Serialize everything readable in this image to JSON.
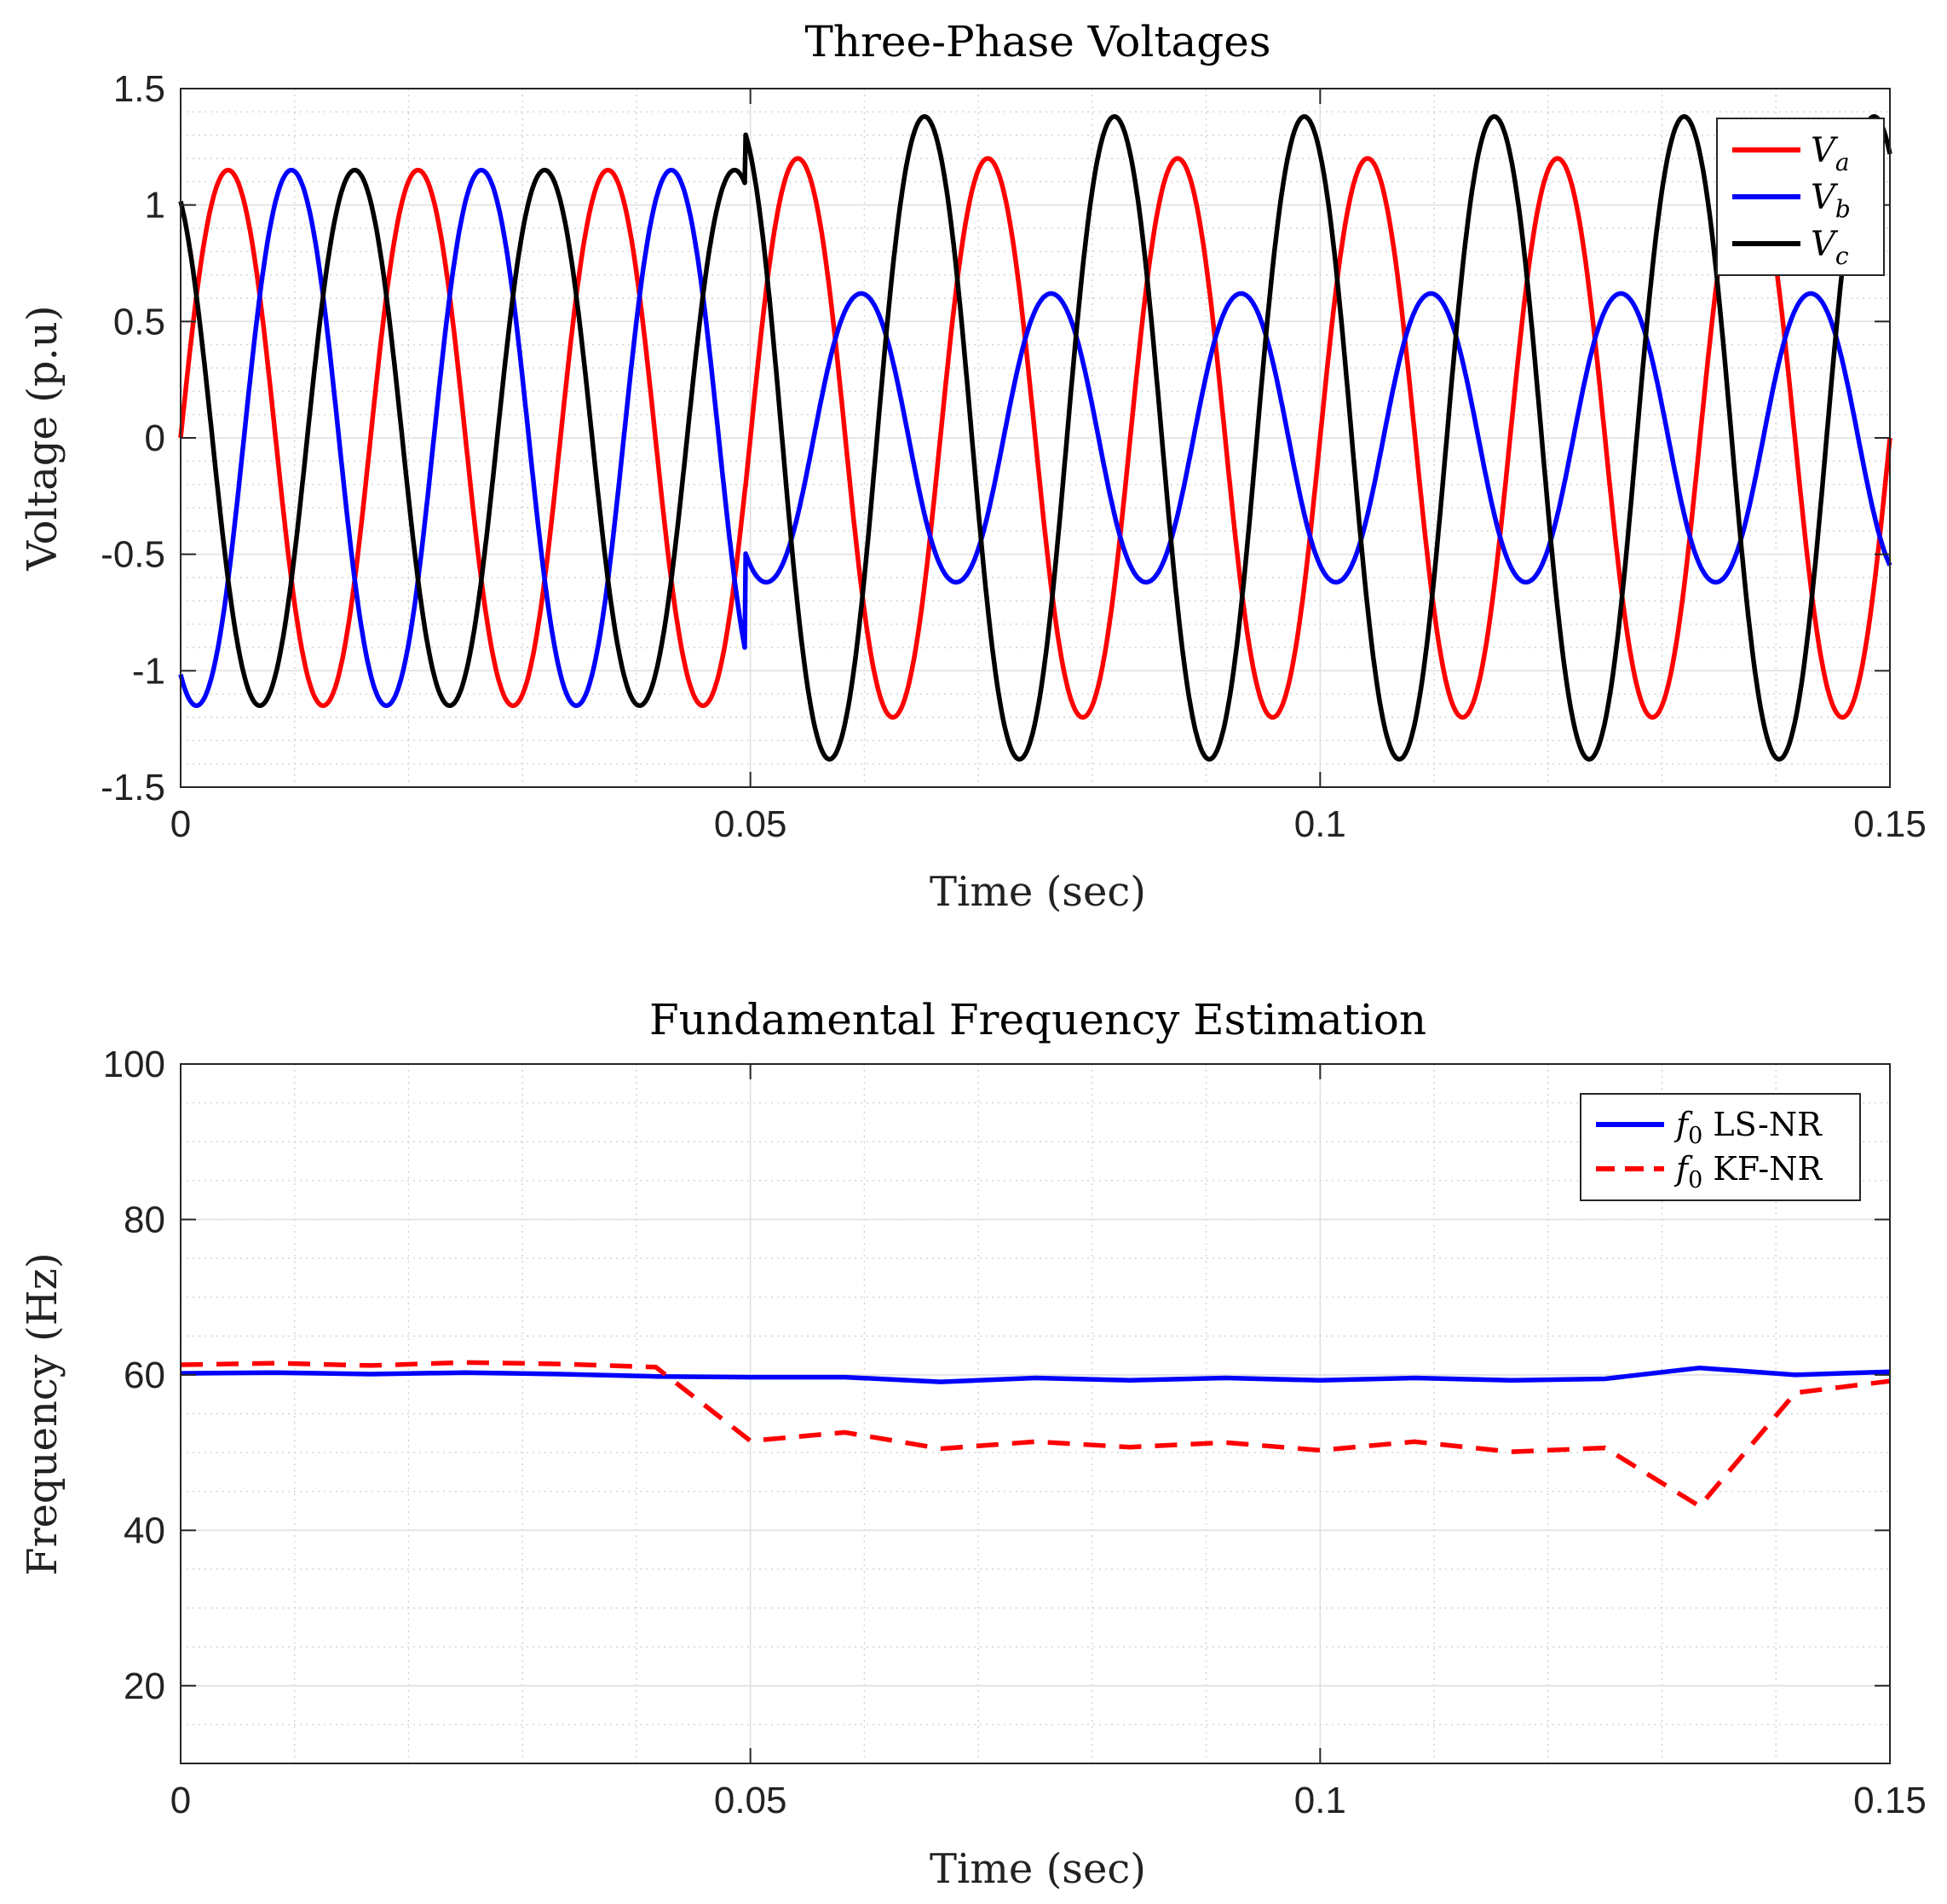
{
  "chart_data": [
    {
      "type": "line",
      "title": "Three-Phase Voltages",
      "xlabel": "Time (sec)",
      "ylabel": "Voltage (p.u)",
      "xlim": [
        0,
        0.15
      ],
      "ylim": [
        -1.5,
        1.5
      ],
      "xticks": [
        0,
        0.05,
        0.1,
        0.15
      ],
      "xtick_labels": [
        "0",
        "0.05",
        "0.1",
        "0.15"
      ],
      "yticks": [
        -1.5,
        -1,
        -0.5,
        0,
        0.5,
        1,
        1.5
      ],
      "ytick_labels": [
        "-1.5",
        "-1",
        "-0.5",
        "0",
        "0.5",
        "1",
        "1.5"
      ],
      "grid": true,
      "legend_position": "top-right",
      "signal_model": {
        "frequency_hz": 60,
        "disturbance_start_sec": 0.0495,
        "pre_disturbance_amplitude": 1.15,
        "post_disturbance_amplitudes": {
          "Va": 1.2,
          "Vb": 0.62,
          "Vc": 1.38
        }
      },
      "series": [
        {
          "name": "Va",
          "legend_main": "V",
          "legend_sub": "a",
          "color": "#ff0000",
          "style": "solid",
          "phase_deg": 0
        },
        {
          "name": "Vb",
          "legend_main": "V",
          "legend_sub": "b",
          "color": "#0000ff",
          "style": "solid",
          "phase_deg": -120
        },
        {
          "name": "Vc",
          "legend_main": "V",
          "legend_sub": "c",
          "color": "#000000",
          "style": "solid",
          "phase_deg": 120
        }
      ]
    },
    {
      "type": "line",
      "title": "Fundamental Frequency Estimation",
      "xlabel": "Time (sec)",
      "ylabel": "Frequency (Hz)",
      "xlim": [
        0,
        0.15
      ],
      "ylim": [
        10,
        100
      ],
      "xticks": [
        0,
        0.05,
        0.1,
        0.15
      ],
      "xtick_labels": [
        "0",
        "0.05",
        "0.1",
        "0.15"
      ],
      "yticks": [
        20,
        40,
        60,
        80,
        100
      ],
      "ytick_labels": [
        "20",
        "40",
        "60",
        "80",
        "100"
      ],
      "grid": true,
      "legend_position": "top-right",
      "series": [
        {
          "name": "f0 LS-NR",
          "legend_main": "f",
          "legend_sub": "0",
          "legend_rest": " LS-NR",
          "color": "#0000ff",
          "style": "solid",
          "x": [
            0,
            0.0083,
            0.0167,
            0.025,
            0.0333,
            0.0417,
            0.05,
            0.0583,
            0.0667,
            0.075,
            0.0833,
            0.0917,
            0.1,
            0.1083,
            0.1167,
            0.125,
            0.1333,
            0.1417,
            0.15
          ],
          "y": [
            60.2,
            60.3,
            60.1,
            60.3,
            60.1,
            59.8,
            59.7,
            59.7,
            59.1,
            59.6,
            59.3,
            59.6,
            59.3,
            59.6,
            59.3,
            59.5,
            60.9,
            60.0,
            60.4
          ]
        },
        {
          "name": "f0 KF-NR",
          "legend_main": "f",
          "legend_sub": "0",
          "legend_rest": " KF-NR",
          "color": "#ff0000",
          "style": "dashed",
          "x": [
            0,
            0.0083,
            0.0167,
            0.025,
            0.0333,
            0.0417,
            0.05,
            0.0583,
            0.0667,
            0.075,
            0.0833,
            0.0917,
            0.1,
            0.1083,
            0.1167,
            0.125,
            0.1333,
            0.1417,
            0.15
          ],
          "y": [
            61.3,
            61.5,
            61.2,
            61.6,
            61.4,
            61.0,
            51.5,
            52.6,
            50.5,
            51.4,
            50.7,
            51.3,
            50.3,
            51.4,
            50.1,
            50.6,
            43.1,
            57.7,
            59.2
          ]
        }
      ]
    }
  ]
}
